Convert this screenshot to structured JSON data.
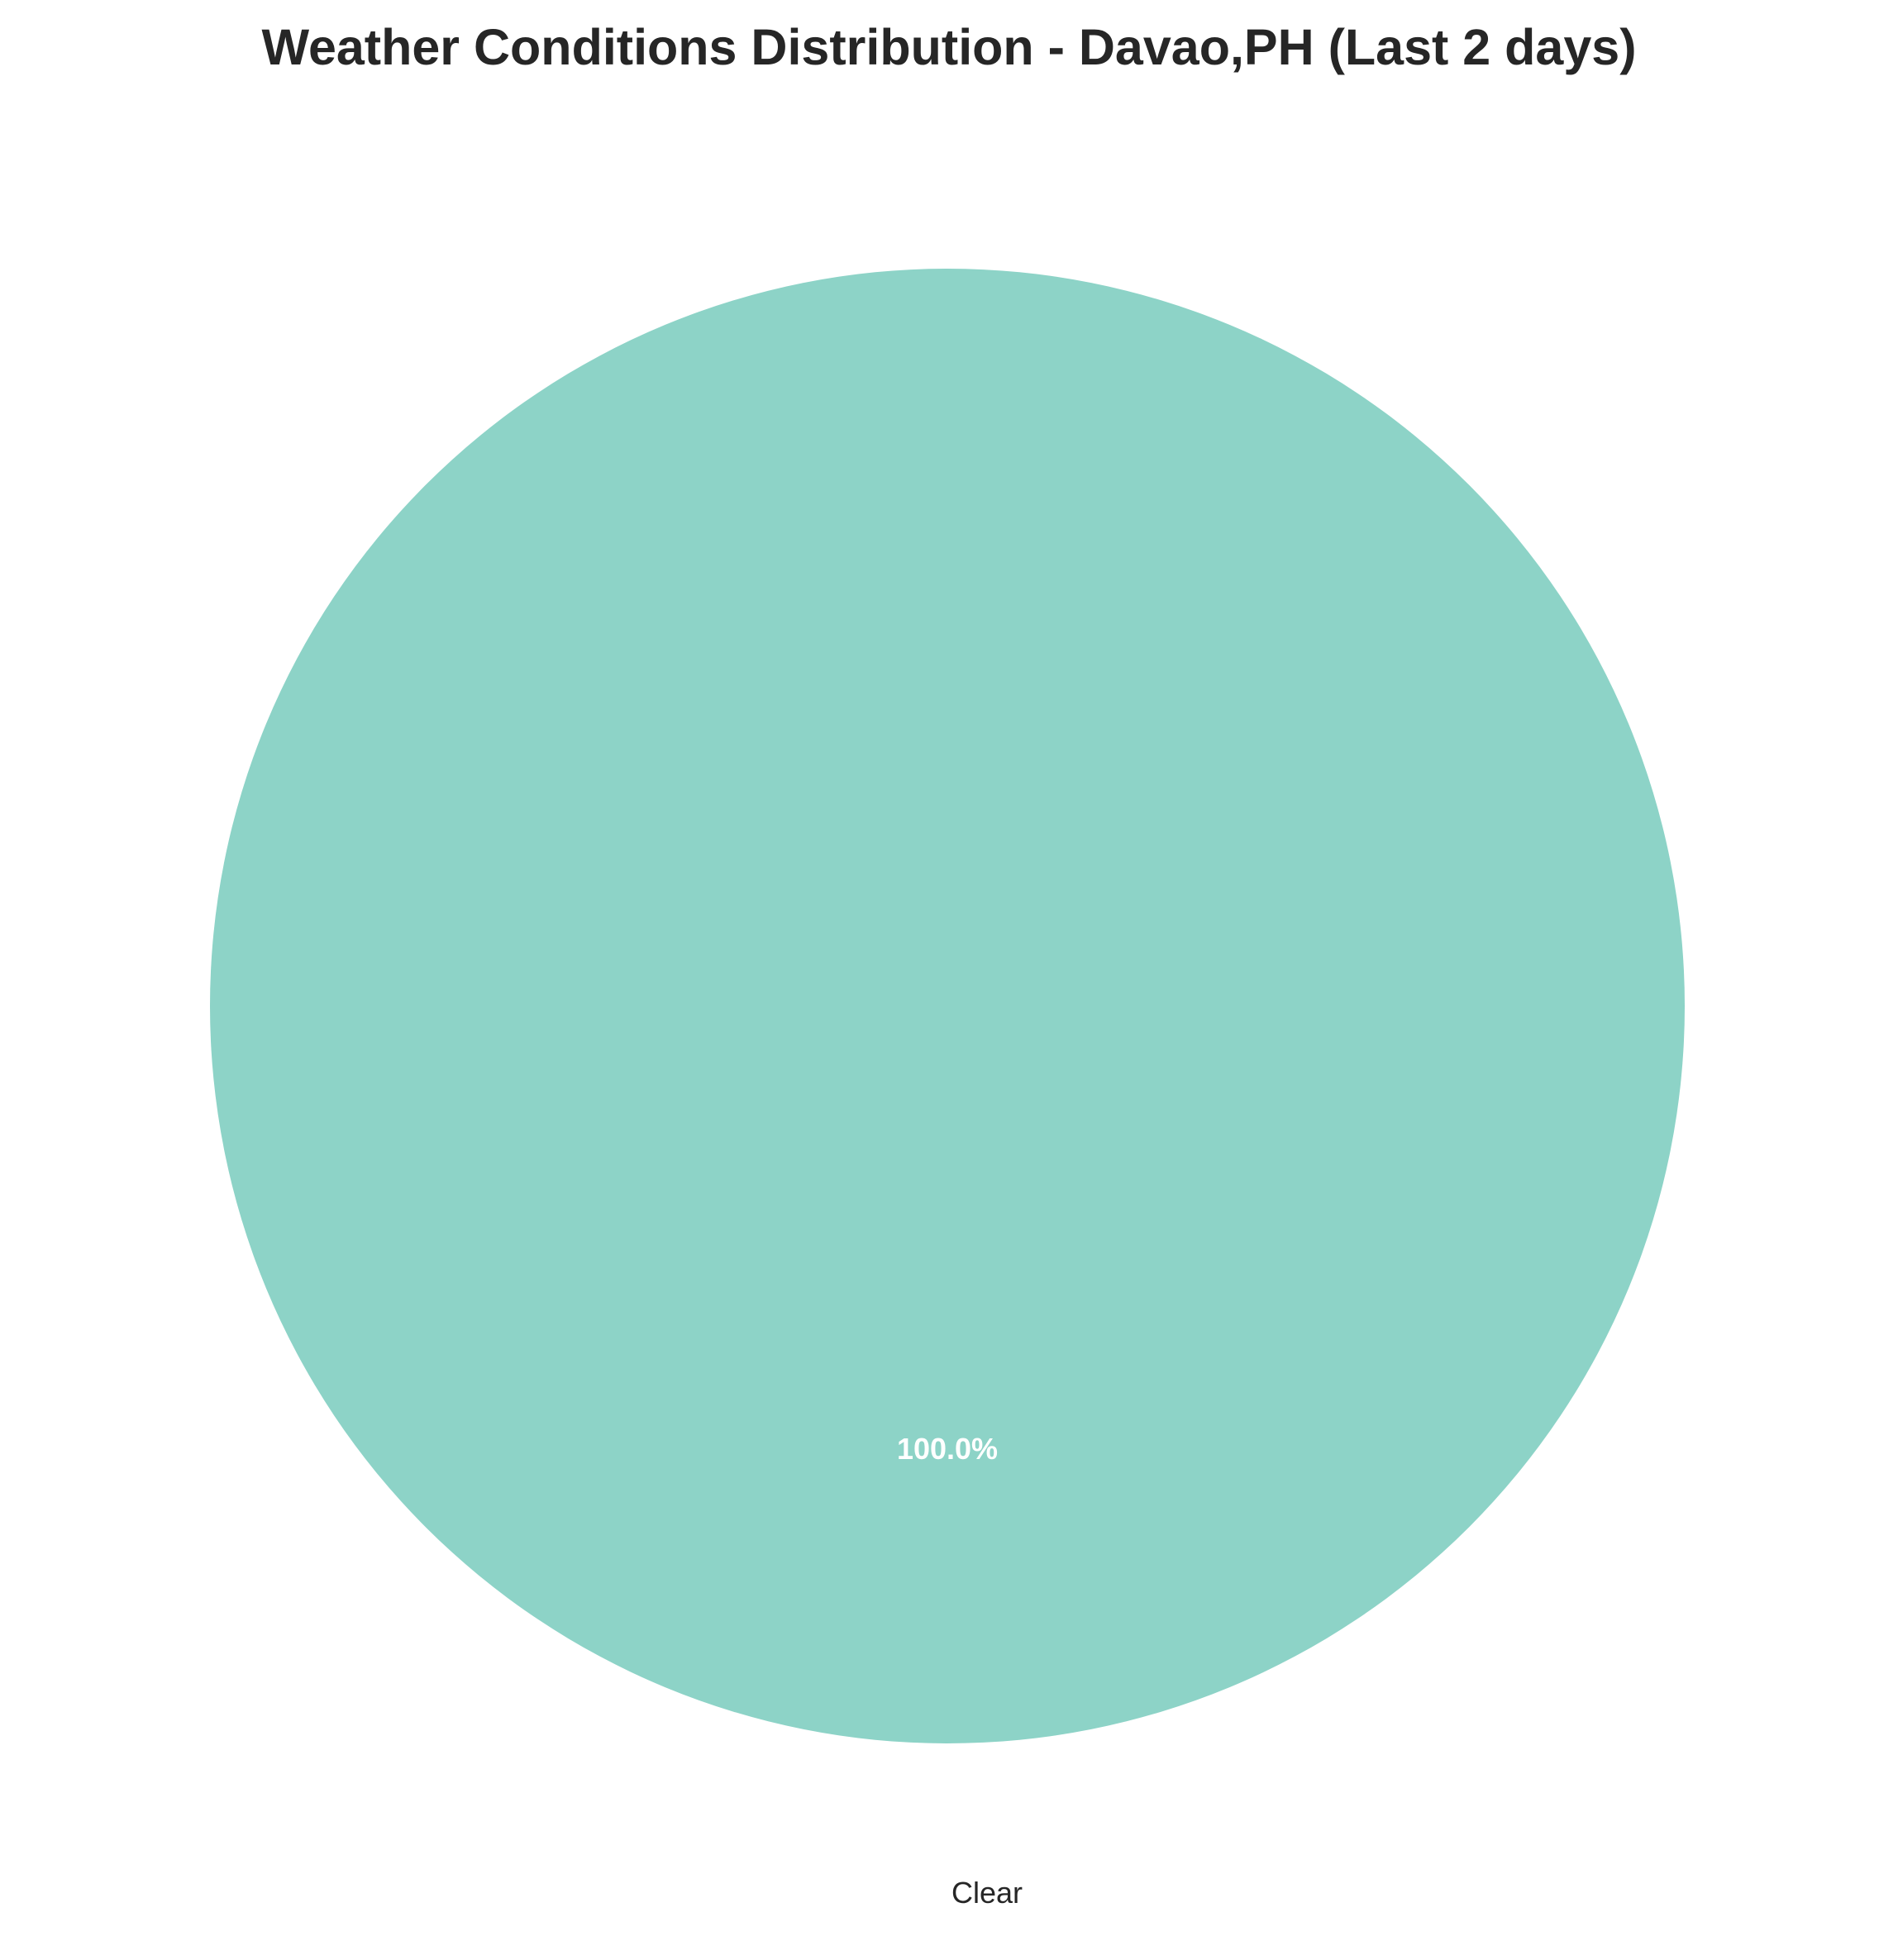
{
  "chart_data": {
    "type": "pie",
    "title": "Weather Conditions Distribution - Davao,PH (Last 2 days)",
    "categories": [
      "Clear"
    ],
    "values": [
      100.0
    ],
    "value_labels": [
      "100.0%"
    ],
    "colors": [
      "#8dd3c7"
    ],
    "label_color": "#262626",
    "pct_label_color": "#ffffff",
    "legend": "none"
  }
}
